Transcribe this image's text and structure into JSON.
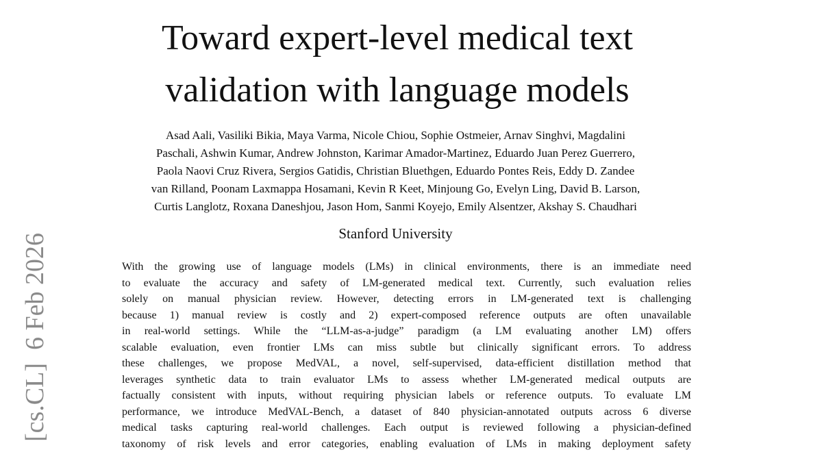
{
  "side_stamp": "[cs.CL]  6 Feb 2026",
  "title": {
    "lines": [
      "Toward expert-level medical text",
      "validation with language models"
    ]
  },
  "authors": {
    "lines": [
      "Asad Aali, Vasiliki Bikia, Maya Varma, Nicole Chiou, Sophie Ostmeier, Arnav Singhvi, Magdalini",
      "Paschali, Ashwin Kumar, Andrew Johnston, Karimar Amador-Martinez, Eduardo Juan Perez Guerrero,",
      "Paola Naovi Cruz Rivera, Sergios Gatidis, Christian Bluethgen, Eduardo Pontes Reis, Eddy D. Zandee",
      "van Rilland, Poonam Laxmappa Hosamani, Kevin R Keet, Minjoung Go, Evelyn Ling, David B. Larson,",
      "Curtis Langlotz, Roxana Daneshjou, Jason Hom, Sanmi Koyejo, Emily Alsentzer, Akshay S. Chaudhari"
    ]
  },
  "affiliation": "Stanford University",
  "abstract": {
    "lines": [
      "With the growing use of language models (LMs) in clinical environments, there is an immediate need",
      "to evaluate the accuracy and safety of LM-generated medical text.  Currently, such evaluation relies",
      "solely on manual physician review.  However, detecting errors in LM-generated text is challenging",
      "because 1) manual review is costly and 2) expert-composed reference outputs are often unavailable",
      "in real-world settings.  While the “LLM-as-a-judge” paradigm (a LM evaluating another LM) offers",
      "scalable evaluation, even frontier LMs can miss subtle but clinically significant errors.  To address",
      "these challenges, we propose MedVAL, a novel, self-supervised, data-efficient distillation method that",
      "leverages synthetic data to train evaluator LMs to assess whether LM-generated medical outputs are",
      "factually consistent with inputs, without requiring physician labels or reference outputs. To evaluate LM",
      "performance, we introduce MedVAL-Bench, a dataset of 840 physician-annotated outputs across 6 diverse",
      "medical tasks capturing real-world challenges.  Each output is reviewed following a physician-defined",
      "taxonomy of risk levels and error categories, enabling evaluation of LMs in making deployment safety"
    ]
  }
}
